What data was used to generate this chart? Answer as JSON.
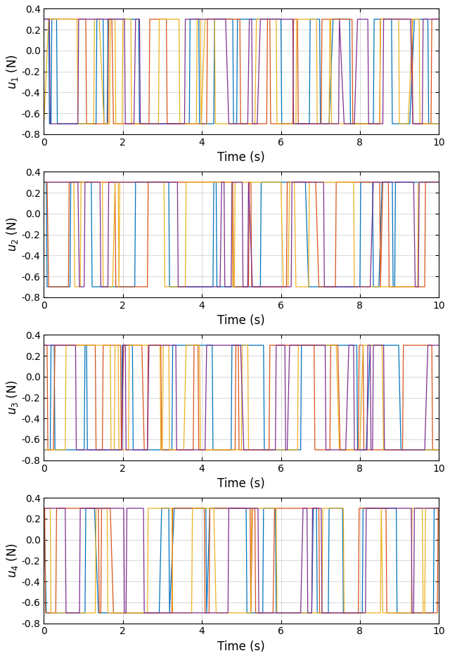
{
  "n_agents": 4,
  "colors": [
    "#0072BD",
    "#D95319",
    "#EDB120",
    "#7E2F8E"
  ],
  "xlim": [
    0,
    10
  ],
  "ylim": [
    -0.8,
    0.4
  ],
  "yticks": [
    -0.8,
    -0.6,
    -0.4,
    -0.2,
    0.0,
    0.2,
    0.4
  ],
  "xticks": [
    0,
    2,
    4,
    6,
    8,
    10
  ],
  "xlabel": "Time (s)",
  "ylabels": [
    "$u_1$ (N)",
    "$u_2$ (N)",
    "$u_3$ (N)",
    "$u_4$ (N)"
  ],
  "dt": 0.02,
  "u_max": 0.3,
  "u_min": -0.7,
  "linewidth": 0.9,
  "figsize": [
    6.4,
    9.36
  ],
  "dpi": 100,
  "font_family": "DejaVu Sans"
}
